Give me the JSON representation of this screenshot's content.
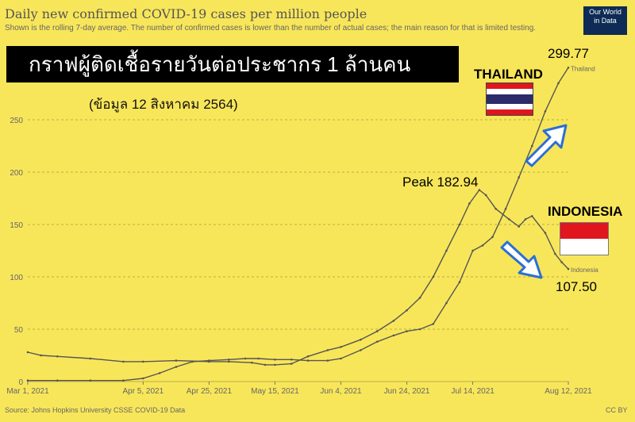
{
  "header": {
    "title": "Daily new confirmed COVID-19 cases per million people",
    "subtitle": "Shown is the rolling 7-day average. The number of confirmed cases is lower than the number of actual cases; the main reason for that is limited testing.",
    "logo_line1": "Our World",
    "logo_line2": "in Data"
  },
  "overlay": {
    "banner_text": "กราฟผู้ติดเชื้อรายวันต่อประชากร 1 ล้านคน",
    "date_note": "(ข้อมูล 12 สิงหาคม 2564)",
    "thailand_label": "THAILAND",
    "thailand_value": "299.77",
    "indonesia_label": "INDONESIA",
    "indonesia_value": "107.50",
    "peak_label": "Peak 182.94"
  },
  "footer": {
    "source": "Source: Johns Hopkins University CSSE COVID-19 Data",
    "license": "CC BY"
  },
  "colors": {
    "background": "#f8e65a",
    "line": "#555555",
    "grid": "#a89a3a",
    "arrow": "#2b6fd6",
    "flag_red": "#e0161e",
    "flag_blue": "#2d2a6b"
  },
  "chart_data": {
    "type": "line",
    "title": "Daily new confirmed COVID-19 cases per million people",
    "subtitle": "Shown is the rolling 7-day average. The number of confirmed cases is lower than the number of actual cases; the main reason for that is limited testing.",
    "xlabel": "",
    "ylabel": "",
    "x_range": [
      "2021-03-01",
      "2021-08-12"
    ],
    "ylim": [
      0,
      260
    ],
    "y_ticks": [
      0,
      50,
      100,
      150,
      200,
      250
    ],
    "x_ticks": [
      "2021-03-01",
      "2021-04-05",
      "2021-04-25",
      "2021-05-15",
      "2021-06-04",
      "2021-06-24",
      "2021-07-14",
      "2021-08-12"
    ],
    "x_tick_labels": [
      "Mar 1, 2021",
      "Apr 5, 2021",
      "Apr 25, 2021",
      "May 15, 2021",
      "Jun 4, 2021",
      "Jun 24, 2021",
      "Jul 14, 2021",
      "Aug 12, 2021"
    ],
    "grid": "horizontal dashed",
    "series": [
      {
        "name": "Thailand",
        "points": [
          [
            "2021-03-01",
            1
          ],
          [
            "2021-03-10",
            1
          ],
          [
            "2021-03-20",
            1
          ],
          [
            "2021-03-30",
            1
          ],
          [
            "2021-04-05",
            3
          ],
          [
            "2021-04-10",
            8
          ],
          [
            "2021-04-15",
            14
          ],
          [
            "2021-04-20",
            19
          ],
          [
            "2021-04-25",
            20
          ],
          [
            "2021-05-01",
            21
          ],
          [
            "2021-05-06",
            22
          ],
          [
            "2021-05-10",
            22
          ],
          [
            "2021-05-15",
            21
          ],
          [
            "2021-05-20",
            21
          ],
          [
            "2021-05-25",
            20
          ],
          [
            "2021-05-31",
            20
          ],
          [
            "2021-06-04",
            22
          ],
          [
            "2021-06-10",
            30
          ],
          [
            "2021-06-15",
            38
          ],
          [
            "2021-06-20",
            44
          ],
          [
            "2021-06-24",
            48
          ],
          [
            "2021-06-28",
            50
          ],
          [
            "2021-07-02",
            55
          ],
          [
            "2021-07-06",
            75
          ],
          [
            "2021-07-10",
            95
          ],
          [
            "2021-07-14",
            125
          ],
          [
            "2021-07-17",
            130
          ],
          [
            "2021-07-20",
            138
          ],
          [
            "2021-07-24",
            165
          ],
          [
            "2021-07-28",
            195
          ],
          [
            "2021-08-01",
            225
          ],
          [
            "2021-08-05",
            258
          ],
          [
            "2021-08-09",
            285
          ],
          [
            "2021-08-12",
            299.77
          ]
        ]
      },
      {
        "name": "Indonesia",
        "points": [
          [
            "2021-03-01",
            28
          ],
          [
            "2021-03-05",
            25
          ],
          [
            "2021-03-10",
            24
          ],
          [
            "2021-03-20",
            22
          ],
          [
            "2021-03-30",
            19
          ],
          [
            "2021-04-05",
            19
          ],
          [
            "2021-04-15",
            20
          ],
          [
            "2021-04-25",
            19
          ],
          [
            "2021-05-01",
            19
          ],
          [
            "2021-05-08",
            18
          ],
          [
            "2021-05-12",
            16
          ],
          [
            "2021-05-15",
            16
          ],
          [
            "2021-05-20",
            17
          ],
          [
            "2021-05-25",
            24
          ],
          [
            "2021-05-31",
            30
          ],
          [
            "2021-06-04",
            33
          ],
          [
            "2021-06-10",
            40
          ],
          [
            "2021-06-15",
            48
          ],
          [
            "2021-06-20",
            58
          ],
          [
            "2021-06-24",
            68
          ],
          [
            "2021-06-28",
            80
          ],
          [
            "2021-07-02",
            100
          ],
          [
            "2021-07-06",
            125
          ],
          [
            "2021-07-10",
            150
          ],
          [
            "2021-07-13",
            170
          ],
          [
            "2021-07-16",
            182.94
          ],
          [
            "2021-07-18",
            178
          ],
          [
            "2021-07-21",
            165
          ],
          [
            "2021-07-25",
            155
          ],
          [
            "2021-07-28",
            148
          ],
          [
            "2021-07-30",
            155
          ],
          [
            "2021-08-01",
            158
          ],
          [
            "2021-08-05",
            142
          ],
          [
            "2021-08-08",
            122
          ],
          [
            "2021-08-10",
            114
          ],
          [
            "2021-08-12",
            107.5
          ]
        ]
      }
    ]
  }
}
